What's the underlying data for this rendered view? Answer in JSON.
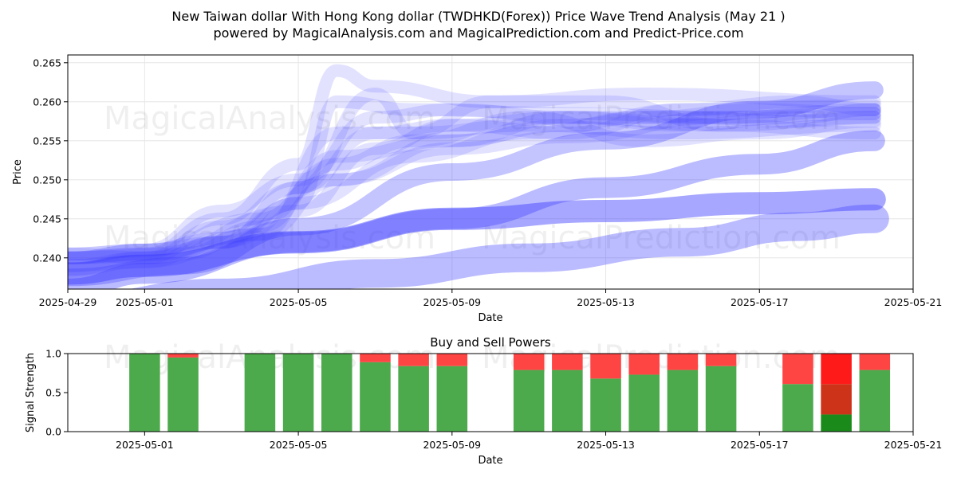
{
  "title_line1": "New Taiwan dollar With Hong Kong dollar (TWDHKD(Forex)) Price Wave Trend Analysis (May 21 )",
  "title_line2": "powered by MagicalAnalysis.com and MagicalPrediction.com and Predict-Price.com",
  "watermarks": [
    "MagicalAnalysis.com",
    "MagicalPrediction.com"
  ],
  "colors": {
    "wave": "#3b3bff",
    "buy": "#4caa4c",
    "sell": "#ff4444",
    "buy_strong": "#1a8a1a",
    "sell_strong": "#ff1a1a",
    "mixed": "#cc3318",
    "grid": "#e6e6e6"
  },
  "chart_data": [
    {
      "type": "line",
      "title": "",
      "xlabel": "Date",
      "ylabel": "Price",
      "xlim": [
        "2025-04-29",
        "2025-05-21"
      ],
      "ylim": [
        0.236,
        0.266
      ],
      "x_ticks": [
        "2025-04-29",
        "2025-05-01",
        "2025-05-05",
        "2025-05-09",
        "2025-05-13",
        "2025-05-17",
        "2025-05-21"
      ],
      "y_ticks": [
        0.24,
        0.245,
        0.25,
        0.255,
        0.26,
        0.265
      ],
      "grid": true,
      "series": [
        {
          "x": [
            "2025-04-29",
            "2025-05-01",
            "2025-05-03",
            "2025-05-05",
            "2025-05-06",
            "2025-05-08",
            "2025-05-12",
            "2025-05-16",
            "2025-05-20"
          ],
          "y": [
            0.2405,
            0.241,
            0.2425,
            0.247,
            0.26,
            0.259,
            0.2585,
            0.258,
            0.2585
          ],
          "opacity": 0.15,
          "width": 16
        },
        {
          "x": [
            "2025-04-29",
            "2025-05-01",
            "2025-05-03",
            "2025-05-05",
            "2025-05-06",
            "2025-05-07",
            "2025-05-10",
            "2025-05-14",
            "2025-05-20"
          ],
          "y": [
            0.24,
            0.2405,
            0.245,
            0.252,
            0.264,
            0.262,
            0.26,
            0.261,
            0.26
          ],
          "opacity": 0.15,
          "width": 16
        },
        {
          "x": [
            "2025-04-29",
            "2025-05-01",
            "2025-05-03",
            "2025-05-05",
            "2025-05-07",
            "2025-05-09",
            "2025-05-12",
            "2025-05-16",
            "2025-05-20"
          ],
          "y": [
            0.24,
            0.241,
            0.246,
            0.25,
            0.258,
            0.259,
            0.258,
            0.257,
            0.258
          ],
          "opacity": 0.15,
          "width": 16
        },
        {
          "x": [
            "2025-04-29",
            "2025-05-01",
            "2025-05-03",
            "2025-05-05",
            "2025-05-07",
            "2025-05-08",
            "2025-05-11",
            "2025-05-15",
            "2025-05-20"
          ],
          "y": [
            0.2405,
            0.24,
            0.244,
            0.249,
            0.261,
            0.256,
            0.257,
            0.256,
            0.257
          ],
          "opacity": 0.15,
          "width": 16
        },
        {
          "x": [
            "2025-04-29",
            "2025-05-01",
            "2025-05-04",
            "2025-05-06",
            "2025-05-08",
            "2025-05-10",
            "2025-05-13",
            "2025-05-16",
            "2025-05-20"
          ],
          "y": [
            0.24,
            0.2405,
            0.243,
            0.256,
            0.256,
            0.26,
            0.26,
            0.257,
            0.256
          ],
          "opacity": 0.15,
          "width": 16
        },
        {
          "x": [
            "2025-04-29",
            "2025-05-01",
            "2025-05-04",
            "2025-05-06",
            "2025-05-08",
            "2025-05-11",
            "2025-05-14",
            "2025-05-17",
            "2025-05-20"
          ],
          "y": [
            0.24,
            0.241,
            0.245,
            0.252,
            0.255,
            0.258,
            0.255,
            0.256,
            0.2575
          ],
          "opacity": 0.15,
          "width": 16
        },
        {
          "x": [
            "2025-04-29",
            "2025-05-01",
            "2025-05-03",
            "2025-05-06",
            "2025-05-09",
            "2025-05-12",
            "2025-05-15",
            "2025-05-18",
            "2025-05-20"
          ],
          "y": [
            0.2405,
            0.241,
            0.242,
            0.25,
            0.255,
            0.257,
            0.259,
            0.26,
            0.259
          ],
          "opacity": 0.15,
          "width": 16
        },
        {
          "x": [
            "2025-04-29",
            "2025-05-01",
            "2025-05-03",
            "2025-05-05",
            "2025-05-07",
            "2025-05-09",
            "2025-05-12",
            "2025-05-15",
            "2025-05-20"
          ],
          "y": [
            0.239,
            0.24,
            0.242,
            0.249,
            0.256,
            0.257,
            0.256,
            0.259,
            0.2595
          ],
          "opacity": 0.15,
          "width": 16
        },
        {
          "x": [
            "2025-04-29",
            "2025-05-02",
            "2025-05-04",
            "2025-05-06",
            "2025-05-09",
            "2025-05-12",
            "2025-05-15",
            "2025-05-18",
            "2025-05-20"
          ],
          "y": [
            0.24,
            0.2405,
            0.244,
            0.253,
            0.255,
            0.258,
            0.258,
            0.2575,
            0.258
          ],
          "opacity": 0.15,
          "width": 16
        },
        {
          "x": [
            "2025-04-29",
            "2025-05-01",
            "2025-05-05",
            "2025-05-07",
            "2025-05-09",
            "2025-05-12",
            "2025-05-15",
            "2025-05-18",
            "2025-05-20"
          ],
          "y": [
            0.2385,
            0.24,
            0.246,
            0.254,
            0.257,
            0.258,
            0.257,
            0.258,
            0.259
          ],
          "opacity": 0.15,
          "width": 16
        },
        {
          "x": [
            "2025-04-29",
            "2025-05-01",
            "2025-05-03",
            "2025-05-05",
            "2025-05-08",
            "2025-05-11",
            "2025-05-14",
            "2025-05-17",
            "2025-05-20"
          ],
          "y": [
            0.239,
            0.2395,
            0.242,
            0.247,
            0.253,
            0.256,
            0.258,
            0.259,
            0.2585
          ],
          "opacity": 0.15,
          "width": 16
        },
        {
          "x": [
            "2025-04-29",
            "2025-05-01",
            "2025-05-04",
            "2025-05-06",
            "2025-05-09",
            "2025-05-12",
            "2025-05-16",
            "2025-05-20"
          ],
          "y": [
            0.2385,
            0.2395,
            0.243,
            0.25,
            0.254,
            0.2555,
            0.258,
            0.259
          ],
          "opacity": 0.15,
          "width": 16
        },
        {
          "x": [
            "2025-04-29",
            "2025-05-02",
            "2025-05-05",
            "2025-05-09",
            "2025-05-13",
            "2025-05-17",
            "2025-05-20"
          ],
          "y": [
            0.2375,
            0.239,
            0.244,
            0.251,
            0.255,
            0.259,
            0.2615
          ],
          "opacity": 0.3,
          "width": 22
        },
        {
          "x": [
            "2025-04-29",
            "2025-05-01",
            "2025-05-05",
            "2025-05-09",
            "2025-05-13",
            "2025-05-17",
            "2025-05-20"
          ],
          "y": [
            0.236,
            0.238,
            0.242,
            0.245,
            0.249,
            0.252,
            0.255
          ],
          "opacity": 0.35,
          "width": 26
        },
        {
          "x": [
            "2025-04-29",
            "2025-05-01",
            "2025-05-05",
            "2025-05-09",
            "2025-05-13",
            "2025-05-17",
            "2025-05-20"
          ],
          "y": [
            0.238,
            0.239,
            0.242,
            0.245,
            0.246,
            0.247,
            0.2475
          ],
          "opacity": 0.45,
          "width": 28
        },
        {
          "x": [
            "2025-04-29",
            "2025-05-03",
            "2025-05-07",
            "2025-05-11",
            "2025-05-15",
            "2025-05-18",
            "2025-05-20"
          ],
          "y": [
            0.2335,
            0.2355,
            0.238,
            0.24,
            0.242,
            0.244,
            0.245
          ],
          "opacity": 0.35,
          "width": 36
        }
      ]
    },
    {
      "type": "bar",
      "title": "Buy and Sell Powers",
      "xlabel": "Date",
      "ylabel": "Signal Strength",
      "ylim": [
        0,
        1.0
      ],
      "y_ticks": [
        0.0,
        0.5,
        1.0
      ],
      "x_ticks": [
        "2025-05-01",
        "2025-05-05",
        "2025-05-09",
        "2025-05-13",
        "2025-05-17",
        "2025-05-21"
      ],
      "xlim": [
        "2025-04-29",
        "2025-05-21"
      ],
      "categories": [
        "2025-05-01",
        "2025-05-02",
        "2025-05-04",
        "2025-05-05",
        "2025-05-06",
        "2025-05-07",
        "2025-05-08",
        "2025-05-09",
        "2025-05-11",
        "2025-05-12",
        "2025-05-13",
        "2025-05-14",
        "2025-05-15",
        "2025-05-16",
        "2025-05-18",
        "2025-05-19",
        "2025-05-20"
      ],
      "series": [
        {
          "name": "buy",
          "values": [
            1.0,
            0.95,
            1.0,
            1.0,
            1.0,
            0.89,
            0.84,
            0.84,
            0.79,
            0.79,
            0.68,
            0.73,
            0.79,
            0.84,
            0.61,
            0.22,
            0.79
          ]
        },
        {
          "name": "mixed",
          "values": [
            0,
            0,
            0,
            0,
            0,
            0,
            0,
            0,
            0,
            0,
            0,
            0,
            0,
            0,
            0,
            0.39,
            0
          ]
        },
        {
          "name": "sell",
          "values": [
            0.0,
            0.05,
            0.0,
            0.0,
            0.0,
            0.11,
            0.16,
            0.16,
            0.21,
            0.21,
            0.32,
            0.27,
            0.21,
            0.16,
            0.39,
            0.39,
            0.21
          ]
        }
      ]
    }
  ]
}
